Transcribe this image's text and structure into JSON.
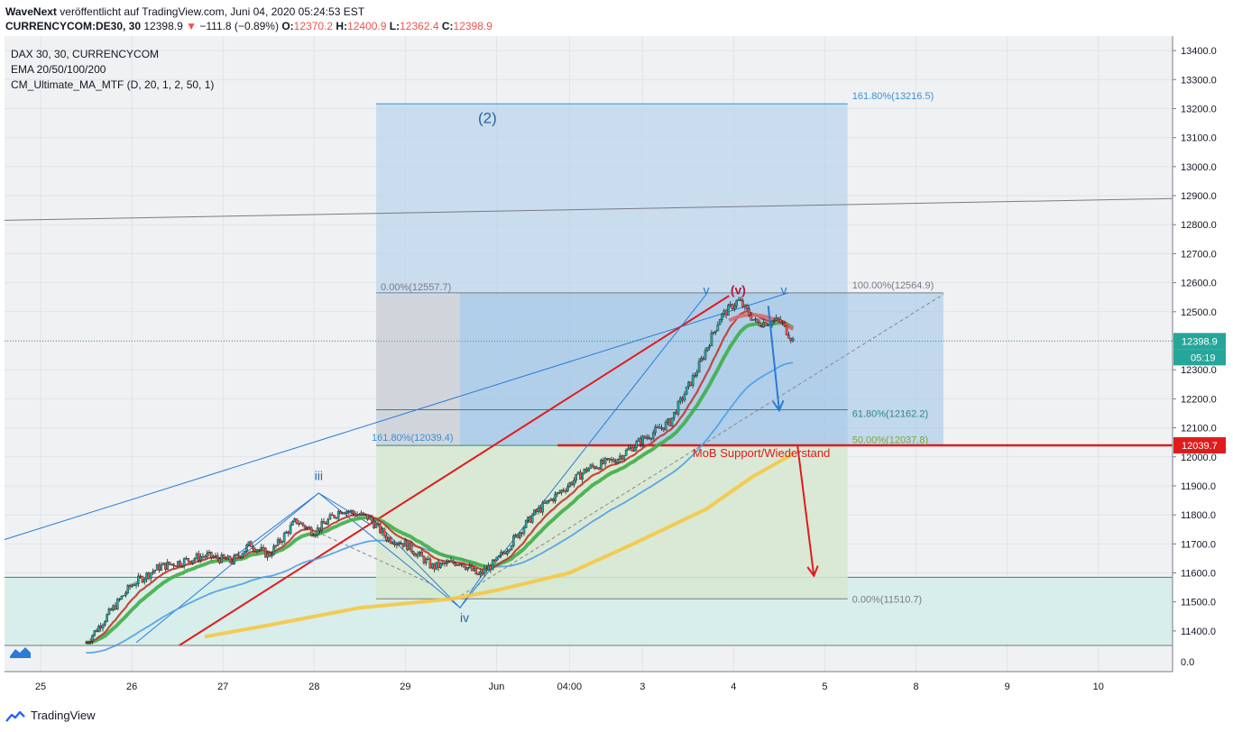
{
  "header": {
    "publisher": "WaveNext",
    "published_text": "veröffentlicht auf TradingView.com, Juni 04, 2020 05:24:53 EST",
    "symbol": "CURRENCYCOM:DE30, 30",
    "last": "12398.9",
    "change": "−111.8 (−0.89%)",
    "open_label": "O:",
    "open": "12370.2",
    "high_label": "H:",
    "high": "12400.9",
    "low_label": "L:",
    "low": "12362.4",
    "close_label": "C:",
    "close": "12398.9"
  },
  "legend": {
    "line1": "DAX 30, 30, CURRENCYCOM",
    "line2": "EMA 20/50/100/200",
    "line3": "CM_Ultimate_MA_MTF (D, 20, 1, 2, 50, 1)"
  },
  "footer": {
    "brand": "TradingView"
  },
  "colors": {
    "grid": "#e0e3eb",
    "panel": "#f0f1f3",
    "blue_box": "#bcd6ec",
    "green_box": "#d6e8cf",
    "teal_box": "#d5ede9",
    "red_line": "#e01b1b",
    "wave_blue": "#2a7bd6",
    "candle_up": "#26a69a",
    "candle_down": "#ef5350",
    "price_badge": "#26a69a"
  },
  "chart_data": {
    "type": "candlestick",
    "title": "DAX 30, 30, CURRENCYCOM",
    "ylim": [
      11350,
      13450
    ],
    "y_ticks": [
      "13400.0",
      "13300.0",
      "13200.0",
      "13100.0",
      "13000.0",
      "12900.0",
      "12800.0",
      "12700.0",
      "12600.0",
      "12500.0",
      "12400.0",
      "12300.0",
      "12200.0",
      "12100.0",
      "12000.0",
      "11900.0",
      "11800.0",
      "11700.0",
      "11600.0",
      "11500.0",
      "11400.0"
    ],
    "y_tick_values": [
      13400,
      13300,
      13200,
      13100,
      13000,
      12900,
      12800,
      12700,
      12600,
      12500,
      12400,
      12300,
      12200,
      12100,
      12000,
      11900,
      11800,
      11700,
      11600,
      11500,
      11400
    ],
    "volume_axis_label": "0.0",
    "x_ticks": [
      "25",
      "26",
      "27",
      "28",
      "29",
      "Jun",
      "04:00",
      "3",
      "4",
      "5",
      "8",
      "9",
      "10"
    ],
    "x_tick_index": [
      0,
      1,
      2,
      3,
      4,
      5,
      5.8,
      6.6,
      7.6,
      8.6,
      9.6,
      10.6,
      11.6
    ],
    "price_path": [
      {
        "t": 0.5,
        "p": 11360
      },
      {
        "t": 1.0,
        "p": 11560
      },
      {
        "t": 1.3,
        "p": 11620
      },
      {
        "t": 1.8,
        "p": 11660
      },
      {
        "t": 2.1,
        "p": 11640
      },
      {
        "t": 2.3,
        "p": 11700
      },
      {
        "t": 2.5,
        "p": 11660
      },
      {
        "t": 2.8,
        "p": 11780
      },
      {
        "t": 3.0,
        "p": 11740
      },
      {
        "t": 3.3,
        "p": 11820
      },
      {
        "t": 3.6,
        "p": 11790
      },
      {
        "t": 3.8,
        "p": 11720
      },
      {
        "t": 4.0,
        "p": 11700
      },
      {
        "t": 4.3,
        "p": 11620
      },
      {
        "t": 4.6,
        "p": 11640
      },
      {
        "t": 4.8,
        "p": 11590
      },
      {
        "t": 5.0,
        "p": 11640
      },
      {
        "t": 5.4,
        "p": 11800
      },
      {
        "t": 5.7,
        "p": 11880
      },
      {
        "t": 6.0,
        "p": 11960
      },
      {
        "t": 6.3,
        "p": 11990
      },
      {
        "t": 6.6,
        "p": 12060
      },
      {
        "t": 6.9,
        "p": 12120
      },
      {
        "t": 7.2,
        "p": 12300
      },
      {
        "t": 7.45,
        "p": 12480
      },
      {
        "t": 7.65,
        "p": 12540
      },
      {
        "t": 7.85,
        "p": 12460
      },
      {
        "t": 8.1,
        "p": 12470
      },
      {
        "t": 8.3,
        "p": 12380
      }
    ],
    "last_price": 12398.9,
    "last_price_label": "12398.9",
    "countdown_label": "05:19",
    "mob_level": 12039.7,
    "mob_level_label": "12039.7",
    "fib_upper": [
      {
        "label": "161.80%(13216.5)",
        "value": 13216.5
      },
      {
        "label": "100.00%(12564.9)",
        "value": 12564.9
      },
      {
        "label": "61.80%(12162.2)",
        "value": 12162.2
      },
      {
        "label": "50.00%(12037.8)",
        "value": 12037.8
      }
    ],
    "fib_lower": [
      {
        "label": "0.00%(12557.7)",
        "value": 12557.7
      },
      {
        "label": "161.80%(12039.4)",
        "value": 12039.4
      },
      {
        "label": "0.00%(11510.7)",
        "value": 11510.7
      }
    ],
    "wave_labels": [
      {
        "text": "(2)",
        "t": 4.9,
        "p": 13150,
        "color": "#2a62a8"
      },
      {
        "text": "iii",
        "t": 3.05,
        "p": 11920,
        "color": "#2a62a8"
      },
      {
        "text": "iv",
        "t": 4.65,
        "p": 11430,
        "color": "#2a62a8"
      },
      {
        "text": "v",
        "t": 7.3,
        "p": 12560,
        "color": "#2a7bd6"
      },
      {
        "text": "(v)",
        "t": 7.65,
        "p": 12560,
        "color": "#b0203c"
      },
      {
        "text": "v",
        "t": 8.15,
        "p": 12560,
        "color": "#2a7bd6"
      }
    ],
    "annotation": "MoB Support/Wiederstand"
  }
}
